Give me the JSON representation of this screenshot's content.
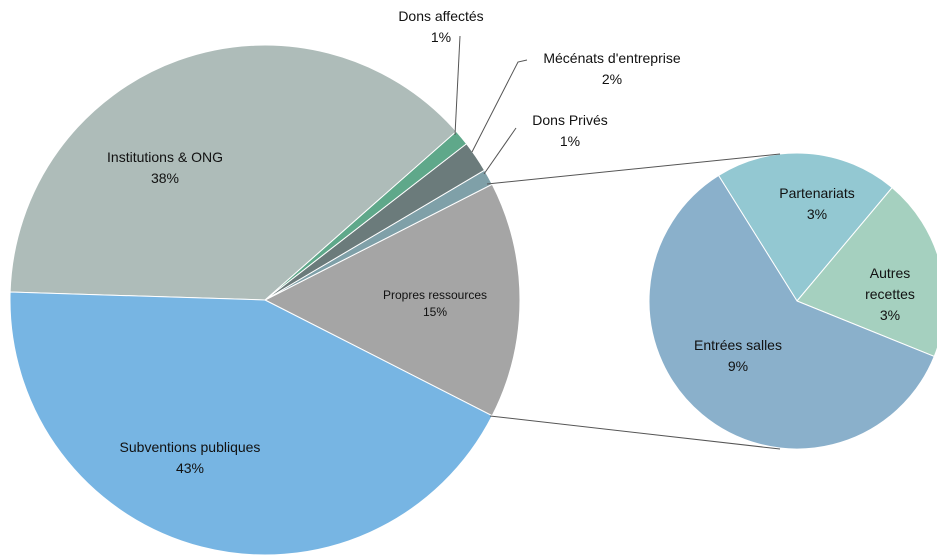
{
  "chart_data": [
    {
      "type": "pie",
      "categories": [
        "Propres ressources",
        "Dons Privés",
        "Mécénats d'entreprise",
        "Dons affectés",
        "Institutions & ONG",
        "Subventions publiques"
      ],
      "values": [
        15,
        1,
        2,
        1,
        38,
        43
      ],
      "value_labels": [
        "15%",
        "1%",
        "2%",
        "1%",
        "38%",
        "43%"
      ],
      "colors": [
        "#a5a5a5",
        "#7fa0a8",
        "#6b7b7b",
        "#5fa88a",
        "#aebcb9",
        "#77b5e3"
      ]
    },
    {
      "type": "pie",
      "categories": [
        "Partenariats",
        "Autres recettes",
        "Entrées salles"
      ],
      "values": [
        3,
        3,
        9
      ],
      "value_labels": [
        "3%",
        "3%",
        "9%"
      ],
      "colors": [
        "#93c8d2",
        "#a5d0bf",
        "#8ab0cb"
      ]
    }
  ]
}
